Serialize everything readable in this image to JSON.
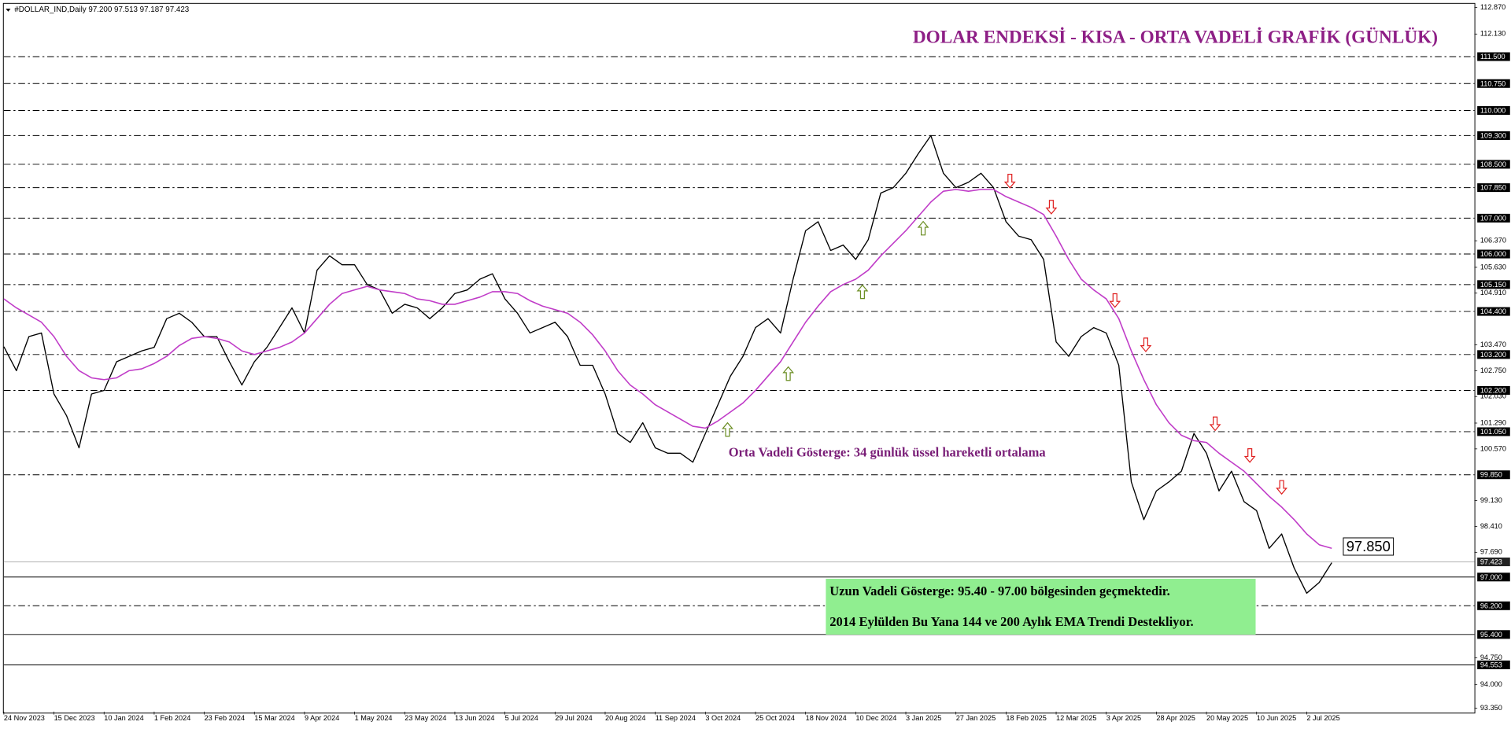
{
  "chart_data": {
    "type": "line",
    "header": "#DOLLAR_IND,Daily  97.200 97.513 97.187 97.423",
    "title": "DOLAR ENDEKSİ - KISA - ORTA VADELİ GRAFİK (GÜNLÜK)",
    "ema_note": "Orta Vadeli Gösterge: 34 günlük üssel hareketli ortalama",
    "long_term_note": [
      "Uzun Vadeli Gösterge: 95.40 - 97.00 bölgesinden geçmektedir.",
      "2014 Eylülden Bu Yana 144 ve 200 Aylık EMA Trendi Destekliyor."
    ],
    "categories": [
      "24 Nov 2023",
      null,
      null,
      null,
      "15 Dec 2023",
      null,
      null,
      null,
      "10 Jan 2024",
      null,
      null,
      null,
      "1 Feb 2024",
      null,
      null,
      null,
      "23 Feb 2024",
      null,
      null,
      null,
      "15 Mar 2024",
      null,
      null,
      null,
      "9 Apr 2024",
      null,
      null,
      null,
      "1 May 2024",
      null,
      null,
      null,
      "23 May 2024",
      null,
      null,
      null,
      "13 Jun 2024",
      null,
      null,
      null,
      "5 Jul 2024",
      null,
      null,
      null,
      "29 Jul 2024",
      null,
      null,
      null,
      "20 Aug 2024",
      null,
      null,
      null,
      "11 Sep 2024",
      null,
      null,
      null,
      "3 Oct 2024",
      null,
      null,
      null,
      "25 Oct 2024",
      null,
      null,
      null,
      "18 Nov 2024",
      null,
      null,
      null,
      "10 Dec 2024",
      null,
      null,
      null,
      "3 Jan 2025",
      null,
      null,
      null,
      "27 Jan 2025",
      null,
      null,
      null,
      "18 Feb 2025",
      null,
      null,
      null,
      "12 Mar 2025",
      null,
      null,
      null,
      "3 Apr 2025",
      null,
      null,
      null,
      "28 Apr 2025",
      null,
      null,
      null,
      "20 May 2025",
      null,
      null,
      null,
      "10 Jun 2025",
      null,
      null,
      null,
      "2 Jul 2025",
      null,
      null
    ],
    "series": [
      {
        "color": "#000000",
        "values": [
          103.42,
          102.75,
          103.7,
          103.8,
          102.1,
          101.5,
          100.6,
          102.1,
          102.2,
          103.0,
          103.15,
          103.3,
          103.4,
          104.2,
          104.35,
          104.1,
          103.7,
          103.7,
          103.0,
          102.35,
          103.0,
          103.4,
          103.95,
          104.5,
          103.8,
          105.55,
          105.95,
          105.7,
          105.7,
          105.15,
          105.0,
          104.35,
          104.6,
          104.5,
          104.2,
          104.5,
          104.9,
          105.0,
          105.3,
          105.45,
          104.75,
          104.35,
          103.8,
          103.95,
          104.1,
          103.7,
          102.9,
          102.9,
          102.1,
          101.0,
          100.75,
          101.3,
          100.6,
          100.45,
          100.45,
          100.2,
          101.0,
          101.8,
          102.6,
          103.15,
          103.95,
          104.2,
          103.8,
          105.3,
          106.65,
          106.9,
          106.1,
          106.25,
          105.85,
          106.4,
          107.7,
          107.85,
          108.25,
          108.8,
          109.3,
          108.25,
          107.85,
          108.0,
          108.25,
          107.85,
          106.9,
          106.5,
          106.4,
          105.85,
          103.55,
          103.15,
          103.7,
          103.95,
          103.8,
          102.9,
          99.65,
          98.6,
          99.4,
          99.65,
          99.95,
          101.0,
          100.45,
          99.4,
          99.95,
          99.1,
          98.85,
          97.8,
          98.2,
          97.25,
          96.55,
          96.85,
          97.4
        ]
      },
      {
        "color": "#c03cc8",
        "values": [
          104.75,
          104.5,
          104.3,
          104.1,
          103.7,
          103.15,
          102.75,
          102.55,
          102.5,
          102.55,
          102.75,
          102.8,
          102.95,
          103.15,
          103.45,
          103.65,
          103.7,
          103.65,
          103.55,
          103.3,
          103.2,
          103.3,
          103.4,
          103.55,
          103.8,
          104.2,
          104.6,
          104.9,
          105.0,
          105.1,
          105.0,
          104.95,
          104.9,
          104.75,
          104.7,
          104.6,
          104.6,
          104.7,
          104.8,
          104.95,
          104.95,
          104.9,
          104.7,
          104.55,
          104.45,
          104.35,
          104.1,
          103.75,
          103.3,
          102.75,
          102.35,
          102.1,
          101.8,
          101.6,
          101.4,
          101.2,
          101.15,
          101.35,
          101.6,
          101.85,
          102.2,
          102.6,
          103.0,
          103.55,
          104.1,
          104.55,
          104.95,
          105.15,
          105.3,
          105.55,
          105.95,
          106.3,
          106.65,
          107.05,
          107.45,
          107.75,
          107.8,
          107.75,
          107.8,
          107.8,
          107.6,
          107.45,
          107.3,
          107.1,
          106.5,
          105.85,
          105.3,
          105.0,
          104.75,
          104.2,
          103.3,
          102.5,
          101.8,
          101.3,
          100.95,
          100.8,
          100.75,
          100.45,
          100.2,
          99.95,
          99.6,
          99.25,
          98.95,
          98.6,
          98.2,
          97.9,
          97.8
        ]
      }
    ],
    "ema_last": {
      "value": 97.85,
      "label": "97.850"
    },
    "ylim": [
      93.25,
      112.97
    ],
    "yticks": [
      {
        "value": 112.87,
        "label": "112.870"
      },
      {
        "value": 112.13,
        "label": "112.130"
      },
      {
        "value": 106.37,
        "label": "106.370"
      },
      {
        "value": 105.63,
        "label": "105.630"
      },
      {
        "value": 104.91,
        "label": "104.910"
      },
      {
        "value": 103.47,
        "label": "103.470"
      },
      {
        "value": 102.75,
        "label": "102.750"
      },
      {
        "value": 102.03,
        "label": "102.030"
      },
      {
        "value": 101.29,
        "label": "101.290"
      },
      {
        "value": 100.57,
        "label": "100.570"
      },
      {
        "value": 99.13,
        "label": "99.130"
      },
      {
        "value": 98.41,
        "label": "98.410"
      },
      {
        "value": 97.69,
        "label": "97.690"
      },
      {
        "value": 94.75,
        "label": "94.750"
      },
      {
        "value": 94,
        "label": "94.000"
      },
      {
        "value": 93.35,
        "label": "93.350"
      }
    ],
    "levels": [
      {
        "value": 111.5,
        "label": "111.500",
        "style": "dashed"
      },
      {
        "value": 110.75,
        "label": "110.750",
        "style": "dashed"
      },
      {
        "value": 110,
        "label": "110.000",
        "style": "dashed"
      },
      {
        "value": 109.3,
        "label": "109.300",
        "style": "dashed"
      },
      {
        "value": 108.5,
        "label": "108.500",
        "style": "dashed"
      },
      {
        "value": 107.85,
        "label": "107.850",
        "style": "dashed"
      },
      {
        "value": 107,
        "label": "107.000",
        "style": "dashed"
      },
      {
        "value": 106,
        "label": "106.000",
        "style": "dashed"
      },
      {
        "value": 105.15,
        "label": "105.150",
        "style": "dashed"
      },
      {
        "value": 104.4,
        "label": "104.400",
        "style": "dashed"
      },
      {
        "value": 103.2,
        "label": "103.200",
        "style": "dashed"
      },
      {
        "value": 102.2,
        "label": "102.200",
        "style": "dashed"
      },
      {
        "value": 101.05,
        "label": "101.050",
        "style": "dashed"
      },
      {
        "value": 99.85,
        "label": "99.850",
        "style": "dashed"
      },
      {
        "value": 97,
        "label": "97.000",
        "style": "solid"
      },
      {
        "value": 96.2,
        "label": "96.200",
        "style": "dashed"
      },
      {
        "value": 95.4,
        "label": "95.400",
        "style": "solid"
      },
      {
        "value": 94.553,
        "label": "94.553",
        "style": "solid"
      }
    ],
    "current_price": {
      "value": 97.423,
      "label": "97.423"
    }
  }
}
